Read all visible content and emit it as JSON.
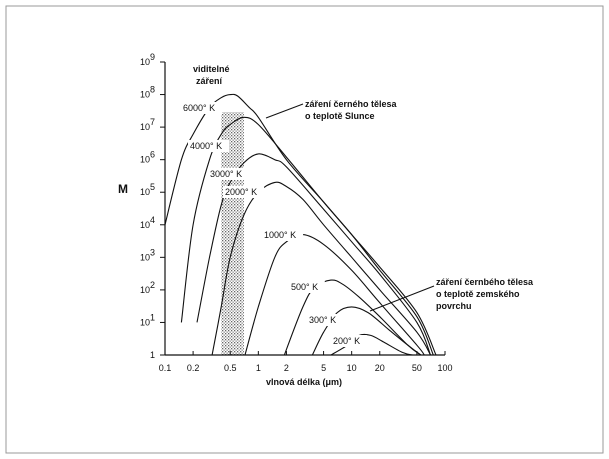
{
  "chart_data": {
    "type": "line",
    "xlabel": "vlnová délka (μm)",
    "ylabel": "M",
    "x_scale": "log",
    "y_scale": "log",
    "xlim": [
      0.1,
      100
    ],
    "ylim": [
      1,
      1000000000
    ],
    "x_ticks": [
      {
        "v": 0.1,
        "label": "0.1"
      },
      {
        "v": 0.2,
        "label": "0.2"
      },
      {
        "v": 0.5,
        "label": "0.5"
      },
      {
        "v": 1,
        "label": "1"
      },
      {
        "v": 2,
        "label": "2"
      },
      {
        "v": 5,
        "label": "5"
      },
      {
        "v": 10,
        "label": "10"
      },
      {
        "v": 20,
        "label": "20"
      },
      {
        "v": 50,
        "label": "50"
      },
      {
        "v": 100,
        "label": "100"
      }
    ],
    "y_ticks": [
      {
        "exp": 0,
        "label": "1"
      },
      {
        "exp": 1,
        "label": "10"
      },
      {
        "exp": 2,
        "label": "10"
      },
      {
        "exp": 3,
        "label": "10"
      },
      {
        "exp": 4,
        "label": "10"
      },
      {
        "exp": 5,
        "label": "10"
      },
      {
        "exp": 6,
        "label": "10"
      },
      {
        "exp": 7,
        "label": "10"
      },
      {
        "exp": 8,
        "label": "10"
      },
      {
        "exp": 9,
        "label": "10"
      }
    ],
    "visible_band": {
      "x_min": 0.4,
      "x_max": 0.7,
      "label_lines": [
        "viditelné",
        "záření"
      ]
    },
    "series": [
      {
        "name": "6000° K",
        "points": [
          [
            0.1,
            10000
          ],
          [
            0.15,
            1000000
          ],
          [
            0.2,
            6000000
          ],
          [
            0.3,
            40000000
          ],
          [
            0.4,
            80000000
          ],
          [
            0.5,
            100000000
          ],
          [
            0.6,
            90000000
          ],
          [
            0.8,
            40000000
          ],
          [
            1.0,
            20000000
          ],
          [
            2,
            1000000
          ],
          [
            5,
            50000
          ],
          [
            10,
            5000
          ],
          [
            20,
            500
          ],
          [
            50,
            20
          ],
          [
            80,
            1
          ]
        ]
      },
      {
        "name": "4000° K",
        "points": [
          [
            0.15,
            10
          ],
          [
            0.2,
            10000
          ],
          [
            0.3,
            1000000
          ],
          [
            0.4,
            6000000
          ],
          [
            0.5,
            12000000
          ],
          [
            0.7,
            20000000
          ],
          [
            1.0,
            12000000
          ],
          [
            2,
            1200000
          ],
          [
            5,
            50000
          ],
          [
            10,
            5000
          ],
          [
            20,
            400
          ],
          [
            50,
            15
          ],
          [
            75,
            1
          ]
        ]
      },
      {
        "name": "3000° K",
        "points": [
          [
            0.22,
            10
          ],
          [
            0.3,
            1000
          ],
          [
            0.4,
            40000
          ],
          [
            0.5,
            200000
          ],
          [
            0.7,
            800000
          ],
          [
            1.0,
            1500000
          ],
          [
            1.5,
            1000000
          ],
          [
            2,
            600000
          ],
          [
            5,
            30000
          ],
          [
            10,
            3000
          ],
          [
            20,
            300
          ],
          [
            50,
            10
          ],
          [
            70,
            1
          ]
        ]
      },
      {
        "name": "2000° K",
        "points": [
          [
            0.32,
            1
          ],
          [
            0.4,
            30
          ],
          [
            0.5,
            1000
          ],
          [
            0.7,
            20000
          ],
          [
            1.0,
            100000
          ],
          [
            1.5,
            200000
          ],
          [
            2,
            150000
          ],
          [
            3,
            60000
          ],
          [
            5,
            10000
          ],
          [
            10,
            1000
          ],
          [
            20,
            100
          ],
          [
            50,
            5
          ],
          [
            70,
            1
          ]
        ]
      },
      {
        "name": "1000° K",
        "points": [
          [
            0.72,
            1
          ],
          [
            1.0,
            30
          ],
          [
            1.5,
            1000
          ],
          [
            2,
            3000
          ],
          [
            3,
            5000
          ],
          [
            5,
            2500
          ],
          [
            10,
            400
          ],
          [
            20,
            40
          ],
          [
            50,
            2
          ],
          [
            60,
            1
          ]
        ]
      },
      {
        "name": "500° K",
        "points": [
          [
            1.9,
            1
          ],
          [
            3,
            30
          ],
          [
            4,
            120
          ],
          [
            6,
            200
          ],
          [
            8,
            150
          ],
          [
            12,
            60
          ],
          [
            20,
            15
          ],
          [
            40,
            2
          ],
          [
            55,
            1
          ]
        ]
      },
      {
        "name": "300° K",
        "points": [
          [
            3.8,
            1
          ],
          [
            5,
            5
          ],
          [
            7,
            20
          ],
          [
            10,
            30
          ],
          [
            15,
            20
          ],
          [
            25,
            6
          ],
          [
            40,
            2
          ],
          [
            55,
            1
          ]
        ]
      },
      {
        "name": "200° K",
        "points": [
          [
            6,
            1
          ],
          [
            9,
            2
          ],
          [
            12,
            4
          ],
          [
            16,
            4
          ],
          [
            22,
            2.5
          ],
          [
            35,
            1.2
          ],
          [
            45,
            1
          ]
        ]
      }
    ],
    "annotations": [
      {
        "id": "sun",
        "lines": [
          "záření černého tělesa",
          "o teplotě Slunce"
        ]
      },
      {
        "id": "earth",
        "lines": [
          "záření černbého tělesa",
          "o teplotě zemského",
          "povrchu"
        ]
      }
    ]
  }
}
